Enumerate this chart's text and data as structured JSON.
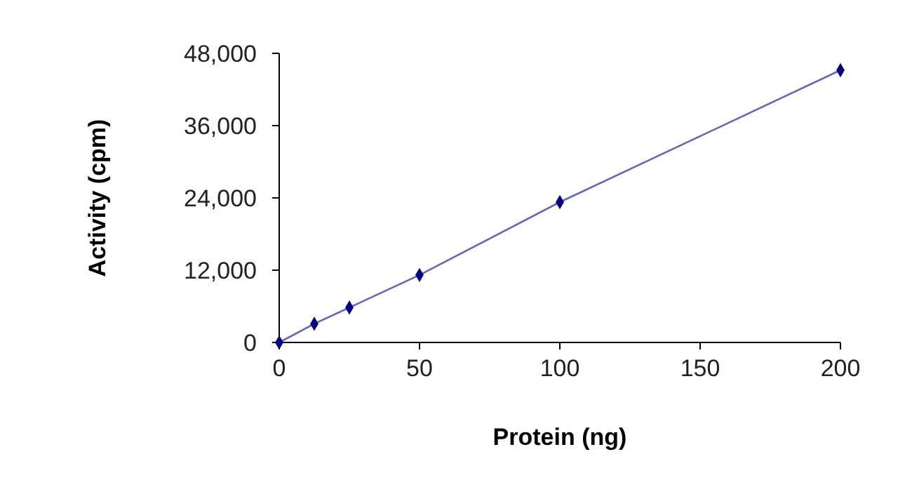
{
  "chart_data": {
    "type": "line",
    "xlabel": "Protein (ng)",
    "ylabel": "Activity (cpm)",
    "x": [
      0,
      12.5,
      25,
      50,
      100,
      200
    ],
    "series": [
      {
        "color": "#000080",
        "values": [
          0,
          3100,
          5800,
          11200,
          23300,
          45200
        ]
      }
    ],
    "xlim": [
      0,
      200
    ],
    "xticks": [
      0,
      50,
      100,
      150,
      200
    ],
    "ylim": [
      0,
      48000
    ],
    "yticks": [
      {
        "value": 0,
        "label": "0"
      },
      {
        "value": 12000,
        "label": "12,000"
      },
      {
        "value": 24000,
        "label": "24,000"
      },
      {
        "value": 36000,
        "label": "36,000"
      },
      {
        "value": 48000,
        "label": "48,000"
      }
    ],
    "marker": "diamond",
    "line_style": "solid"
  }
}
